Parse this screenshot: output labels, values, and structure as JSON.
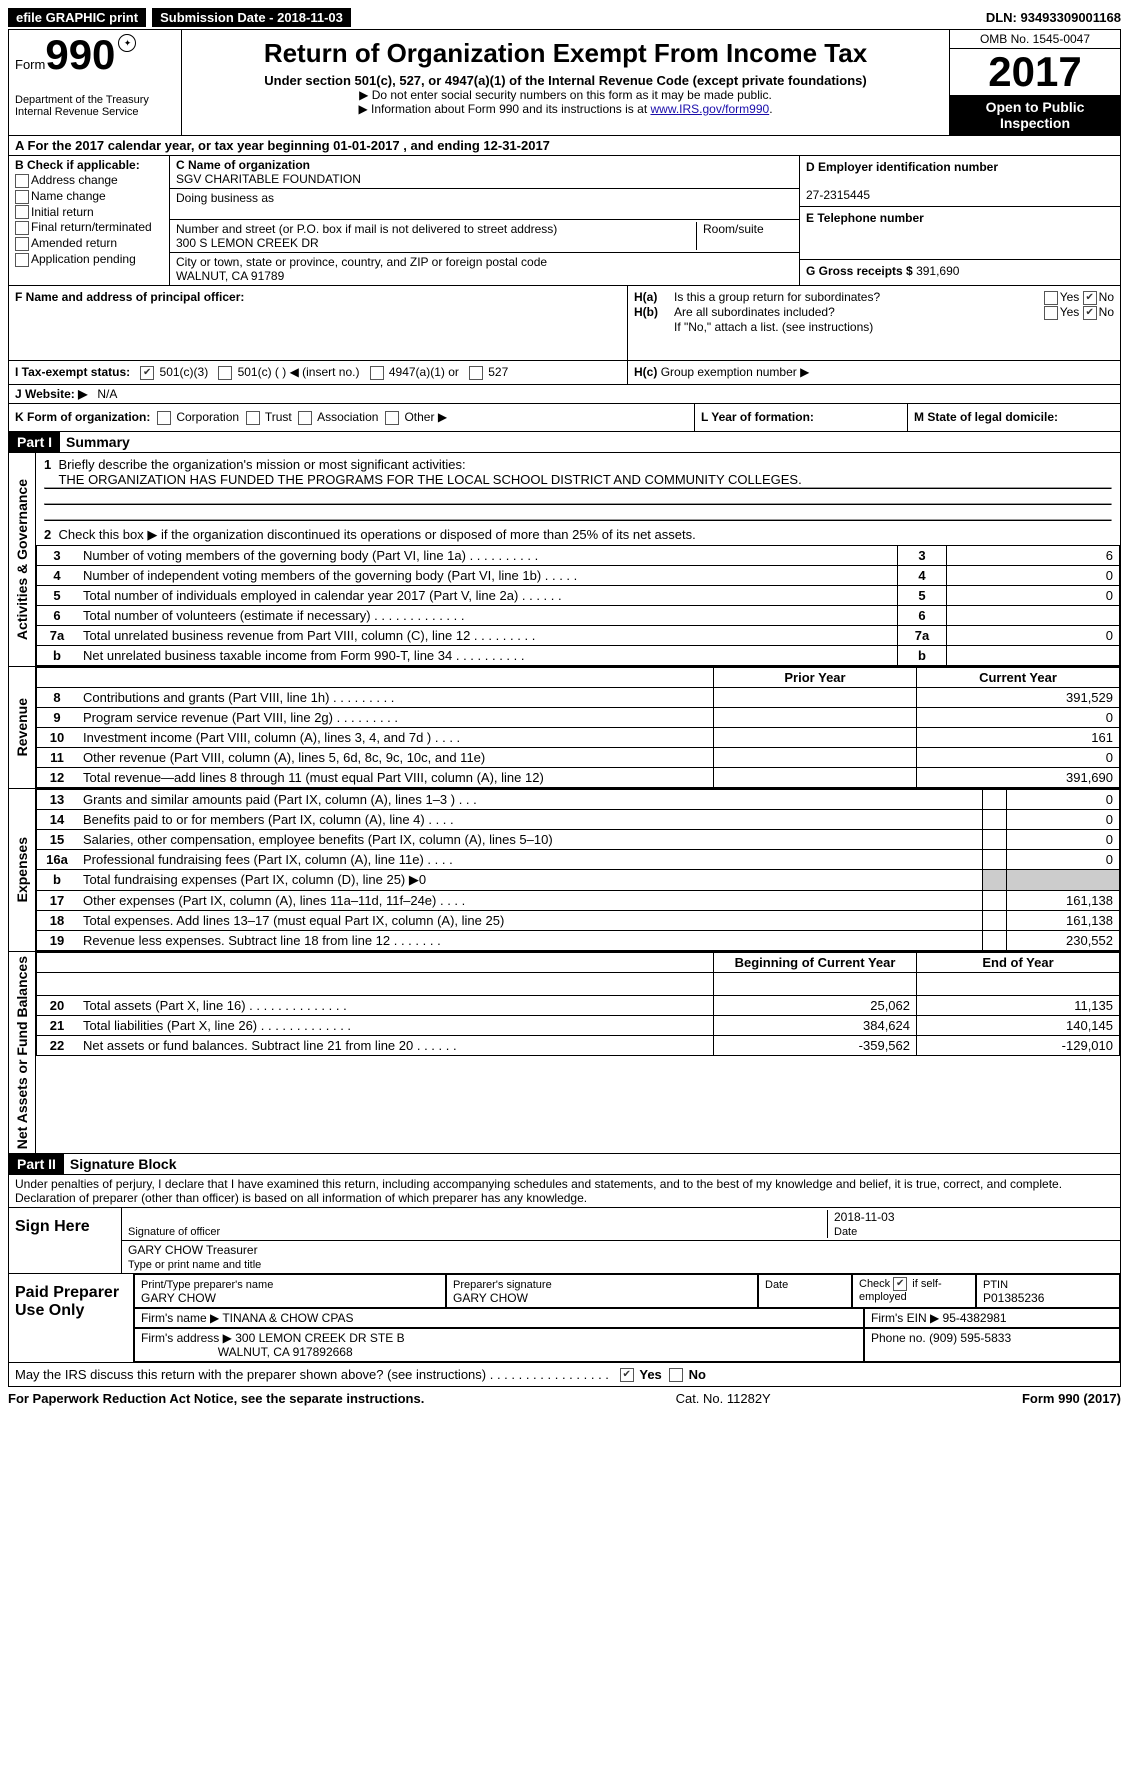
{
  "topbar": {
    "efile": "efile GRAPHIC print",
    "submission_label": "Submission Date - 2018-11-03",
    "dln": "DLN: 93493309001168"
  },
  "header": {
    "form_word": "Form",
    "form_num": "990",
    "dept1": "Department of the Treasury",
    "dept2": "Internal Revenue Service",
    "title": "Return of Organization Exempt From Income Tax",
    "subtitle": "Under section 501(c), 527, or 4947(a)(1) of the Internal Revenue Code (except private foundations)",
    "note1": "▶ Do not enter social security numbers on this form as it may be made public.",
    "note2_a": "▶ Information about Form 990 and its instructions is at ",
    "note2_link": "www.IRS.gov/form990",
    "omb": "OMB No. 1545-0047",
    "year": "2017",
    "open1": "Open to Public",
    "open2": "Inspection"
  },
  "sectionA": {
    "text": "A  For the 2017 calendar year, or tax year beginning 01-01-2017   , and ending 12-31-2017"
  },
  "checkB": {
    "label": "B Check if applicable:",
    "items": [
      "Address change",
      "Name change",
      "Initial return",
      "Final return/terminated",
      "Amended return",
      "Application pending"
    ]
  },
  "blockC": {
    "name_label": "C Name of organization",
    "name": "SGV CHARITABLE FOUNDATION",
    "dba_label": "Doing business as",
    "street_label": "Number and street (or P.O. box if mail is not delivered to street address)",
    "room_label": "Room/suite",
    "street": "300 S LEMON CREEK DR",
    "city_label": "City or town, state or province, country, and ZIP or foreign postal code",
    "city": "WALNUT, CA  91789"
  },
  "blockD": {
    "ein_label": "D Employer identification number",
    "ein": "27-2315445",
    "tel_label": "E Telephone number",
    "gross_label": "G Gross receipts $",
    "gross": "391,690"
  },
  "blockF": {
    "label": "F Name and address of principal officer:"
  },
  "blockH": {
    "ha": "Is this a group return for subordinates?",
    "hb": "Are all subordinates included?",
    "hb_note": "If \"No,\" attach a list. (see instructions)",
    "hc": "Group exemption number ▶"
  },
  "blockI": {
    "label": "I  Tax-exempt status:",
    "opt1": "501(c)(3)",
    "opt2": "501(c) (  ) ◀ (insert no.)",
    "opt3": "4947(a)(1) or",
    "opt4": "527"
  },
  "blockJ": {
    "label": "J  Website: ▶",
    "value": "N/A"
  },
  "blockK": {
    "label": "K Form of organization:",
    "opts": [
      "Corporation",
      "Trust",
      "Association",
      "Other ▶"
    ]
  },
  "blockL": "L Year of formation:",
  "blockM": "M State of legal domicile:",
  "part1": {
    "hdr": "Part I",
    "title": "Summary",
    "side_ag": "Activities & Governance",
    "side_rev": "Revenue",
    "side_exp": "Expenses",
    "side_net": "Net Assets or Fund Balances",
    "q1_label": "Briefly describe the organization's mission or most significant activities:",
    "q1_text": "THE ORGANIZATION HAS FUNDED THE PROGRAMS FOR THE LOCAL SCHOOL DISTRICT AND COMMUNITY COLLEGES.",
    "q2": "Check this box ▶   if the organization discontinued its operations or disposed of more than 25% of its net assets.",
    "rows_gov": [
      {
        "n": "3",
        "d": "Number of voting members of the governing body (Part VI, line 1a)   .    .    .    .    .    .    .    .    .    .",
        "v": "6"
      },
      {
        "n": "4",
        "d": "Number of independent voting members of the governing body (Part VI, line 1b)    .    .    .    .    .",
        "v": "0"
      },
      {
        "n": "5",
        "d": "Total number of individuals employed in calendar year 2017 (Part V, line 2a)   .    .    .    .    .    .",
        "v": "0"
      },
      {
        "n": "6",
        "d": "Total number of volunteers (estimate if necessary)   .    .    .    .    .    .    .    .    .    .    .    .    .",
        "v": ""
      },
      {
        "n": "7a",
        "d": "Total unrelated business revenue from Part VIII, column (C), line 12   .    .    .    .    .    .    .    .    .",
        "v": "0"
      },
      {
        "n": "b",
        "d": "Net unrelated business taxable income from Form 990-T, line 34   .    .    .    .    .    .    .    .    .    .",
        "v": ""
      }
    ],
    "col_prior": "Prior Year",
    "col_current": "Current Year",
    "rows_rev": [
      {
        "n": "8",
        "d": "Contributions and grants (Part VIII, line 1h)    .    .    .    .    .    .    .    .    .",
        "p": "",
        "c": "391,529"
      },
      {
        "n": "9",
        "d": "Program service revenue (Part VIII, line 2g)    .    .    .    .    .    .    .    .    .",
        "p": "",
        "c": "0"
      },
      {
        "n": "10",
        "d": "Investment income (Part VIII, column (A), lines 3, 4, and 7d )   .    .    .    .",
        "p": "",
        "c": "161"
      },
      {
        "n": "11",
        "d": "Other revenue (Part VIII, column (A), lines 5, 6d, 8c, 9c, 10c, and 11e)",
        "p": "",
        "c": "0"
      },
      {
        "n": "12",
        "d": "Total revenue—add lines 8 through 11 (must equal Part VIII, column (A), line 12)",
        "p": "",
        "c": "391,690"
      }
    ],
    "rows_exp": [
      {
        "n": "13",
        "d": "Grants and similar amounts paid (Part IX, column (A), lines 1–3 )   .    .    .",
        "p": "",
        "c": "0"
      },
      {
        "n": "14",
        "d": "Benefits paid to or for members (Part IX, column (A), line 4)   .    .    .    .",
        "p": "",
        "c": "0"
      },
      {
        "n": "15",
        "d": "Salaries, other compensation, employee benefits (Part IX, column (A), lines 5–10)",
        "p": "",
        "c": "0"
      },
      {
        "n": "16a",
        "d": "Professional fundraising fees (Part IX, column (A), line 11e)   .    .    .    .",
        "p": "",
        "c": "0"
      },
      {
        "n": "b",
        "d": "Total fundraising expenses (Part IX, column (D), line 25) ▶0",
        "p": "GRAY",
        "c": "GRAY"
      },
      {
        "n": "17",
        "d": "Other expenses (Part IX, column (A), lines 11a–11d, 11f–24e)   .    .    .    .",
        "p": "",
        "c": "161,138"
      },
      {
        "n": "18",
        "d": "Total expenses. Add lines 13–17 (must equal Part IX, column (A), line 25)",
        "p": "",
        "c": "161,138"
      },
      {
        "n": "19",
        "d": "Revenue less expenses. Subtract line 18 from line 12   .    .    .    .    .    .    .",
        "p": "",
        "c": "230,552"
      }
    ],
    "col_begin": "Beginning of Current Year",
    "col_end": "End of Year",
    "rows_net": [
      {
        "n": "20",
        "d": "Total assets (Part X, line 16)   .    .    .    .    .    .    .    .    .    .    .    .    .    .",
        "p": "25,062",
        "c": "11,135"
      },
      {
        "n": "21",
        "d": "Total liabilities (Part X, line 26)   .    .    .    .    .    .    .    .    .    .    .    .    .",
        "p": "384,624",
        "c": "140,145"
      },
      {
        "n": "22",
        "d": "Net assets or fund balances. Subtract line 21 from line 20 .    .    .    .    .    .",
        "p": "-359,562",
        "c": "-129,010"
      }
    ]
  },
  "part2": {
    "hdr": "Part II",
    "title": "Signature Block",
    "perjury": "Under penalties of perjury, I declare that I have examined this return, including accompanying schedules and statements, and to the best of my knowledge and belief, it is true, correct, and complete. Declaration of preparer (other than officer) is based on all information of which preparer has any knowledge.",
    "sign_here": "Sign Here",
    "sig_officer": "Signature of officer",
    "sig_date": "2018-11-03",
    "date_label": "Date",
    "officer_name": "GARY CHOW Treasurer",
    "type_label": "Type or print name and title",
    "paid": "Paid Preparer Use Only",
    "prep_name_label": "Print/Type preparer's name",
    "prep_name": "GARY CHOW",
    "prep_sig_label": "Preparer's signature",
    "prep_sig": "GARY CHOW",
    "prep_date_label": "Date",
    "self_emp": "Check       if self-employed",
    "ptin_label": "PTIN",
    "ptin": "P01385236",
    "firm_name_label": "Firm's name    ▶",
    "firm_name": "TINANA & CHOW CPAS",
    "firm_ein_label": "Firm's EIN ▶",
    "firm_ein": "95-4382981",
    "firm_addr_label": "Firm's address ▶",
    "firm_addr1": "300 LEMON CREEK DR STE B",
    "firm_addr2": "WALNUT, CA  917892668",
    "phone_label": "Phone no.",
    "phone": "(909) 595-5833",
    "discuss": "May the IRS discuss this return with the preparer shown above? (see instructions)   .    .    .    .    .    .    .    .    .    .    .    .    .    .    .    .    ."
  },
  "footer": {
    "left": "For Paperwork Reduction Act Notice, see the separate instructions.",
    "mid": "Cat. No. 11282Y",
    "right": "Form 990 (2017)"
  }
}
